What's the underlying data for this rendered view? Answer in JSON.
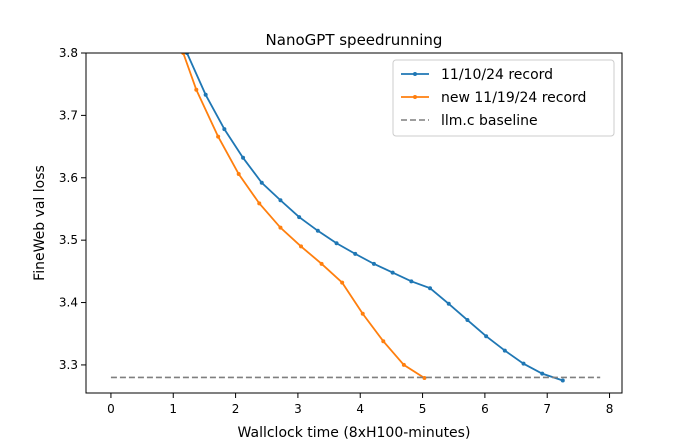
{
  "chart_data": {
    "type": "line",
    "title": "NanoGPT speedrunning",
    "xlabel": "Wallclock time (8xH100-minutes)",
    "ylabel": "FineWeb val loss",
    "xlim": [
      -0.4,
      8.2
    ],
    "ylim": [
      3.255,
      3.8
    ],
    "x_ticks": [
      0,
      1,
      2,
      3,
      4,
      5,
      6,
      7,
      8
    ],
    "y_ticks": [
      3.3,
      3.4,
      3.5,
      3.6,
      3.7,
      3.8
    ],
    "grid": false,
    "legend_position": "top-right",
    "series": [
      {
        "name": "11/10/24 record",
        "color": "#1f77b4",
        "style": "solid-markers",
        "x": [
          1.22,
          1.52,
          1.82,
          2.12,
          2.42,
          2.72,
          3.02,
          3.32,
          3.62,
          3.92,
          4.22,
          4.52,
          4.82,
          5.12,
          5.42,
          5.72,
          6.02,
          6.32,
          6.62,
          6.92,
          7.25
        ],
        "y": [
          3.8,
          3.733,
          3.678,
          3.632,
          3.592,
          3.564,
          3.537,
          3.515,
          3.495,
          3.478,
          3.462,
          3.448,
          3.434,
          3.423,
          3.398,
          3.372,
          3.346,
          3.323,
          3.302,
          3.286,
          3.275
        ]
      },
      {
        "name": "new 11/19/24 record",
        "color": "#ff7f0e",
        "style": "solid-markers",
        "x": [
          1.16,
          1.37,
          1.72,
          2.05,
          2.38,
          2.72,
          3.05,
          3.38,
          3.71,
          4.04,
          4.37,
          4.7,
          5.03
        ],
        "y": [
          3.8,
          3.741,
          3.666,
          3.606,
          3.559,
          3.52,
          3.49,
          3.462,
          3.432,
          3.382,
          3.338,
          3.3,
          3.279
        ]
      },
      {
        "name": "llm.c baseline",
        "color": "#7f7f7f",
        "style": "dashed",
        "x": [
          0,
          7.85
        ],
        "y": [
          3.28,
          3.28
        ]
      }
    ]
  }
}
